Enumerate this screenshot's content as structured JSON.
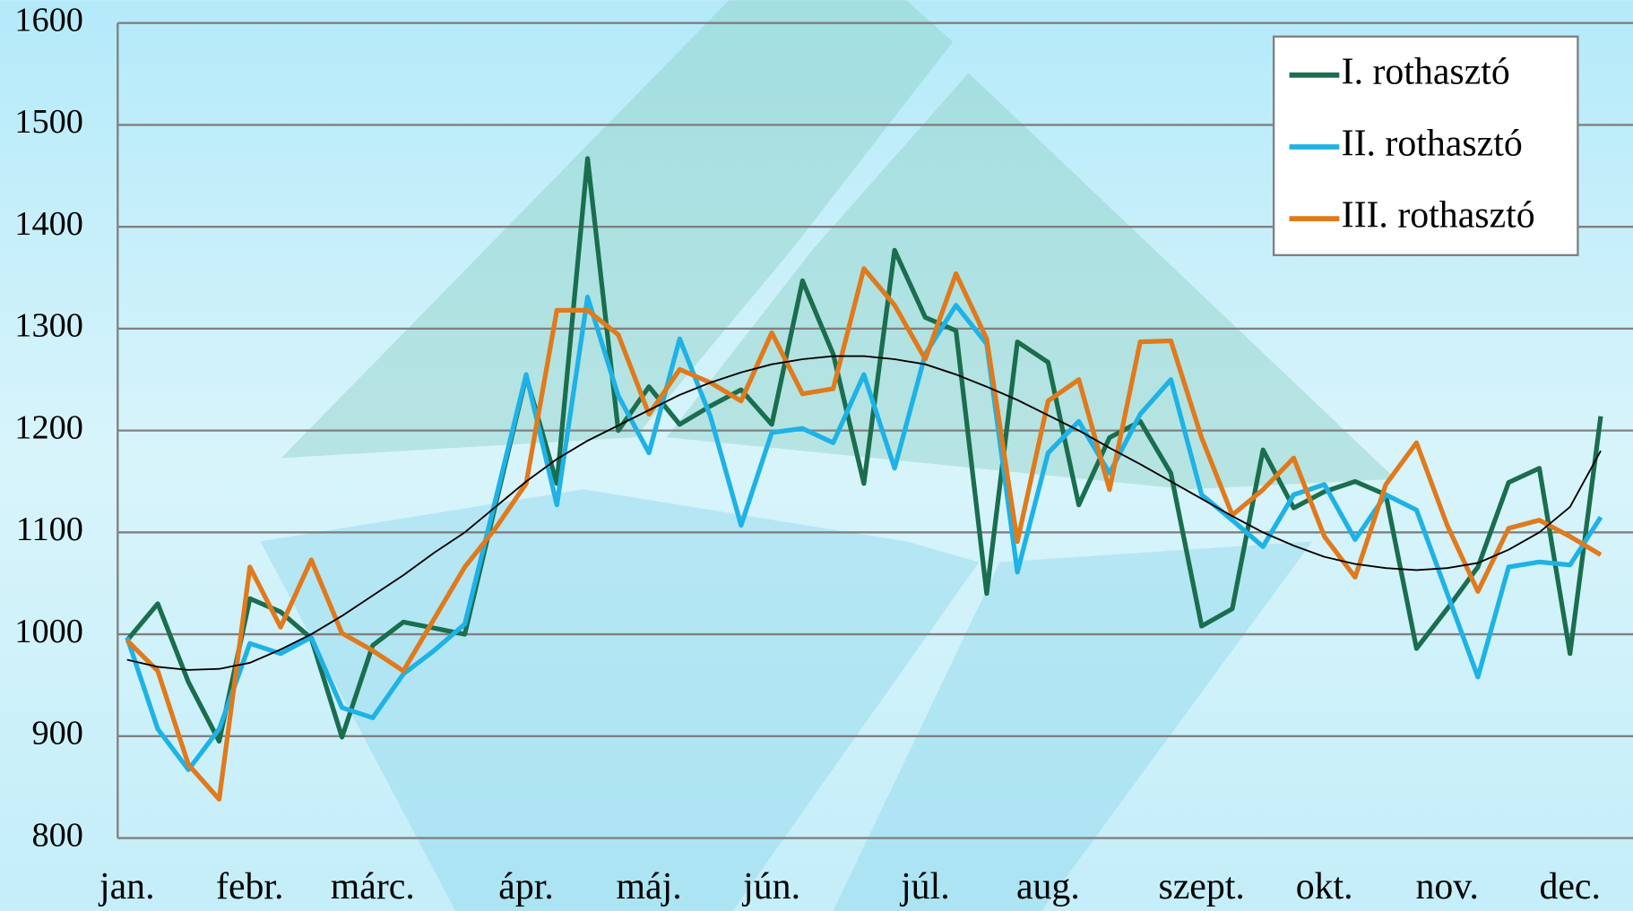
{
  "chart_data": {
    "type": "line",
    "categories": [
      "jan.",
      null,
      null,
      null,
      "febr.",
      null,
      null,
      null,
      "márc.",
      null,
      null,
      null,
      null,
      "ápr.",
      null,
      null,
      null,
      "máj.",
      null,
      null,
      null,
      "jún.",
      null,
      null,
      null,
      null,
      "júl.",
      null,
      null,
      null,
      "aug.",
      null,
      null,
      null,
      null,
      "szept.",
      null,
      null,
      null,
      "okt.",
      null,
      null,
      null,
      "nov.",
      null,
      null,
      null,
      "dec.",
      null
    ],
    "series": [
      {
        "name": "I. rothasztó",
        "color": "#1a6e4e",
        "values": [
          994,
          1030,
          953,
          895,
          1035,
          1022,
          996,
          899,
          989,
          1012,
          1006,
          1000,
          1127,
          1253,
          1148,
          1467,
          1200,
          1243,
          1206,
          1224,
          1240,
          1206,
          1347,
          1275,
          1148,
          1377,
          1311,
          1298,
          1040,
          1287,
          1267,
          1127,
          1193,
          1209,
          1158,
          1008,
          1025,
          1181,
          1124,
          1140,
          1150,
          1137,
          986,
          1025,
          1066,
          1149,
          1163,
          981,
          1214
        ]
      },
      {
        "name": "II. rothasztó",
        "color": "#1eb2e6",
        "values": [
          997,
          907,
          867,
          907,
          991,
          981,
          997,
          928,
          918,
          961,
          984,
          1010,
          1132,
          1255,
          1127,
          1331,
          1234,
          1178,
          1290,
          1214,
          1107,
          1198,
          1202,
          1188,
          1255,
          1163,
          1275,
          1323,
          1285,
          1061,
          1178,
          1209,
          1158,
          1216,
          1250,
          1137,
          1112,
          1086,
          1137,
          1147,
          1093,
          1137,
          1122,
          1040,
          958,
          1066,
          1071,
          1068,
          1115
        ]
      },
      {
        "name": "III. rothasztó",
        "color": "#e07a1c",
        "values": [
          994,
          964,
          872,
          838,
          1066,
          1007,
          1073,
          1001,
          984,
          964,
          1015,
          1066,
          1104,
          1148,
          1318,
          1318,
          1294,
          1216,
          1260,
          1247,
          1229,
          1296,
          1236,
          1241,
          1359,
          1323,
          1270,
          1354,
          1290,
          1091,
          1229,
          1250,
          1142,
          1287,
          1288,
          1193,
          1117,
          1142,
          1173,
          1096,
          1056,
          1147,
          1188,
          1107,
          1042,
          1104,
          1112,
          1096,
          1078
        ]
      }
    ],
    "trendline": {
      "color": "#000000",
      "values": [
        975,
        968,
        965,
        966,
        972,
        985,
        1000,
        1018,
        1038,
        1058,
        1080,
        1100,
        1125,
        1150,
        1172,
        1190,
        1205,
        1220,
        1235,
        1247,
        1257,
        1265,
        1270,
        1273,
        1273,
        1270,
        1265,
        1255,
        1243,
        1230,
        1215,
        1200,
        1183,
        1167,
        1150,
        1133,
        1116,
        1100,
        1087,
        1076,
        1069,
        1065,
        1063,
        1065,
        1070,
        1083,
        1100,
        1125,
        1180
      ]
    },
    "ylim": [
      800,
      1600
    ],
    "yticks": [
      800,
      900,
      1000,
      1100,
      1200,
      1300,
      1400,
      1500,
      1600
    ],
    "grid": true,
    "legend": "upper right"
  }
}
